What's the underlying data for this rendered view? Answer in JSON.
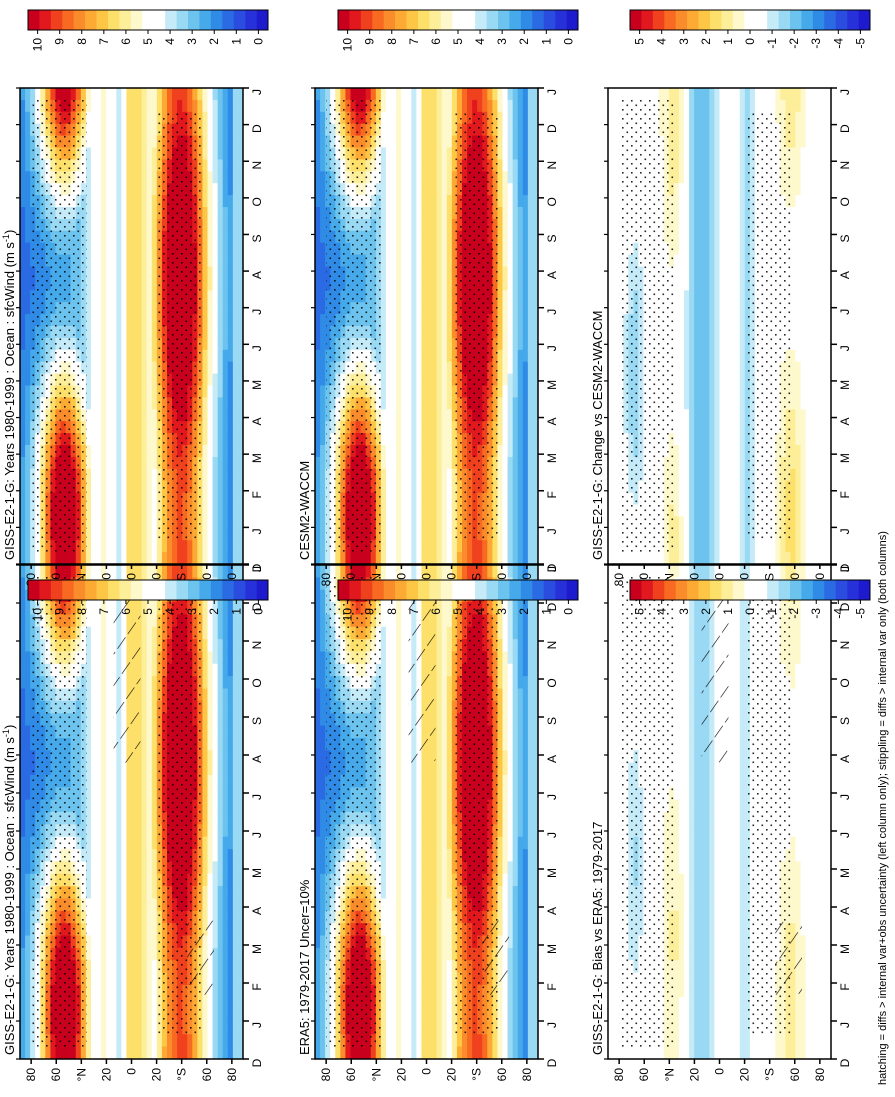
{
  "figure": {
    "footnote": "hatching = diffs > internal var+obs uncertainty (left column only); stippling = diffs > internal var only (both columns)",
    "unit_text": "(m s",
    "unit_exp": "-1",
    "unit_close": ")"
  },
  "axes": {
    "month_ticks": [
      "D",
      "J",
      "F",
      "M",
      "A",
      "M",
      "J",
      "J",
      "A",
      "S",
      "O",
      "N",
      "D",
      "J"
    ],
    "lat_ticks": [
      "80",
      "60",
      "°N",
      "20",
      "0",
      "20",
      "°S",
      "60",
      "80"
    ]
  },
  "colorbars": {
    "absolute_labels": [
      "10",
      "9",
      "8",
      "7",
      "6",
      "5",
      "4",
      "3",
      "2",
      "1",
      "0"
    ],
    "diff_labels": [
      "5",
      "4",
      "3",
      "2",
      "1",
      "0",
      "-1",
      "-2",
      "-3",
      "-4",
      "-5"
    ],
    "absolute_colors": [
      "#c8001e",
      "#e1191e",
      "#f0411e",
      "#f86a22",
      "#fb8c2b",
      "#fdaa35",
      "#fdc745",
      "#fde06a",
      "#fdee99",
      "#fef8cd",
      "#ffffff",
      "#ffffff",
      "#c6ebf8",
      "#9ad9f3",
      "#6cc4ee",
      "#45a9ea",
      "#2f8be6",
      "#2a6be4",
      "#2a4de0",
      "#2631d9",
      "#1e1acd"
    ],
    "diff_colors": [
      "#c8001e",
      "#e1191e",
      "#f0411e",
      "#f86a22",
      "#fb8c2b",
      "#fdaa35",
      "#fdc745",
      "#fde06a",
      "#fdee99",
      "#fef8cd",
      "#ffffff",
      "#ffffff",
      "#c6ebf8",
      "#9ad9f3",
      "#6cc4ee",
      "#45a9ea",
      "#2f8be6",
      "#2a6be4",
      "#2a4de0",
      "#2631d9",
      "#1e1acd"
    ]
  },
  "chart_data": [
    {
      "type": "heatmap",
      "title": "GISS-E2-1-G: Years 1980-1999 : Ocean : sfcWind",
      "xlabel": "",
      "ylabel": "",
      "x_categories": [
        "D",
        "J",
        "F",
        "M",
        "A",
        "M",
        "J",
        "J",
        "A",
        "S",
        "O",
        "N",
        "D",
        "J"
      ],
      "y_ticks": [
        "80",
        "60",
        "°N",
        "20",
        "0",
        "20",
        "°S",
        "60",
        "80"
      ],
      "colorbar_range": [
        0,
        10
      ],
      "colorbar": "absolute",
      "hatching": true,
      "stippling": true
    },
    {
      "type": "heatmap",
      "title": "ERA5: 1979-2017 Uncer=10%",
      "xlabel": "",
      "ylabel": "",
      "x_categories": [
        "D",
        "J",
        "F",
        "M",
        "A",
        "M",
        "J",
        "J",
        "A",
        "S",
        "O",
        "N",
        "D",
        "J"
      ],
      "y_ticks": [
        "80",
        "60",
        "°N",
        "20",
        "0",
        "20",
        "°S",
        "60",
        "80"
      ],
      "colorbar_range": [
        0,
        10
      ],
      "colorbar": "absolute",
      "hatching": true,
      "stippling": true
    },
    {
      "type": "heatmap",
      "title": "GISS-E2-1-G: Bias vs ERA5: 1979-2017",
      "xlabel": "",
      "ylabel": "",
      "x_categories": [
        "D",
        "J",
        "F",
        "M",
        "A",
        "M",
        "J",
        "J",
        "A",
        "S",
        "O",
        "N",
        "D",
        "J"
      ],
      "y_ticks": [
        "80",
        "60",
        "°N",
        "20",
        "0",
        "20",
        "°S",
        "60",
        "80"
      ],
      "colorbar_range": [
        -5,
        5
      ],
      "colorbar": "diff",
      "hatching": true,
      "stippling": true
    },
    {
      "type": "heatmap",
      "title": "GISS-E2-1-G: Years 1980-1999 : Ocean : sfcWind",
      "xlabel": "",
      "ylabel": "",
      "x_categories": [
        "D",
        "J",
        "F",
        "M",
        "A",
        "M",
        "J",
        "J",
        "A",
        "S",
        "O",
        "N",
        "D",
        "J"
      ],
      "y_ticks": [
        "80",
        "60",
        "°N",
        "20",
        "0",
        "20",
        "°S",
        "60",
        "80"
      ],
      "colorbar_range": [
        0,
        10
      ],
      "colorbar": "absolute",
      "hatching": false,
      "stippling": true
    },
    {
      "type": "heatmap",
      "title": "CESM2-WACCM",
      "xlabel": "",
      "ylabel": "",
      "x_categories": [
        "D",
        "J",
        "F",
        "M",
        "A",
        "M",
        "J",
        "J",
        "A",
        "S",
        "O",
        "N",
        "D",
        "J"
      ],
      "y_ticks": [
        "80",
        "60",
        "°N",
        "20",
        "0",
        "20",
        "°S",
        "60",
        "80"
      ],
      "colorbar_range": [
        0,
        10
      ],
      "colorbar": "absolute",
      "hatching": false,
      "stippling": true
    },
    {
      "type": "heatmap",
      "title": "GISS-E2-1-G: Change vs CESM2-WACCM",
      "xlabel": "",
      "ylabel": "",
      "x_categories": [
        "D",
        "J",
        "F",
        "M",
        "A",
        "M",
        "J",
        "J",
        "A",
        "S",
        "O",
        "N",
        "D",
        "J"
      ],
      "y_ticks": [
        "80",
        "60",
        "°N",
        "20",
        "0",
        "20",
        "°S",
        "60",
        "80"
      ],
      "colorbar_range": [
        -5,
        5
      ],
      "colorbar": "diff",
      "hatching": false,
      "stippling": true
    }
  ]
}
